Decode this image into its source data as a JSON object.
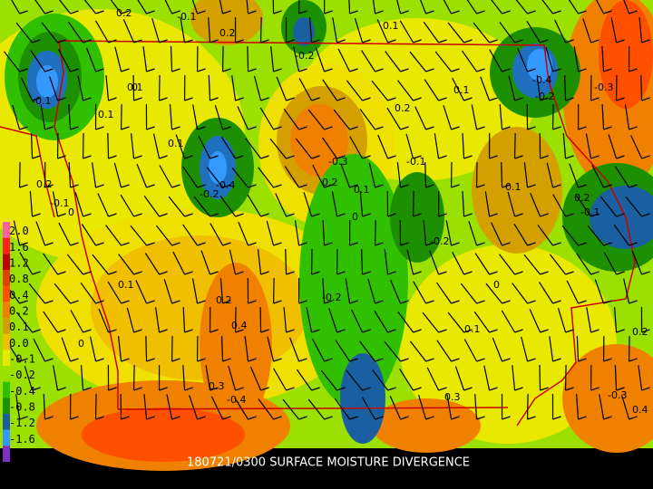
{
  "title": "180721/0300 SURFACE MOISTURE DIVERGENCE",
  "legend": [
    {
      "label": "2.0",
      "color": "#ff60a0"
    },
    {
      "label": "1.6",
      "color": "#ff2020"
    },
    {
      "label": "1.2",
      "color": "#c00000"
    },
    {
      "label": "0.8",
      "color": "#e04000"
    },
    {
      "label": "0.4",
      "color": "#ff5000"
    },
    {
      "label": "0.2",
      "color": "#f08000"
    },
    {
      "label": "0.1",
      "color": "#d4a000"
    },
    {
      "label": "0.0",
      "color": "#f0c000"
    },
    {
      "label": "-0.1",
      "color": "#e8e800"
    },
    {
      "label": "-0.2",
      "color": "#9be000"
    },
    {
      "label": "-0.4",
      "color": "#30c000"
    },
    {
      "label": "-0.8",
      "color": "#1c9000"
    },
    {
      "label": "-1.2",
      "color": "#1a60a0"
    },
    {
      "label": "-1.6",
      "color": "#3399ff"
    },
    {
      "label": "-2.0",
      "color": "#8030c0"
    }
  ],
  "contour_labels": [
    "0.2",
    "-0.1",
    "0.2",
    "-0.2",
    "0.1",
    "0.1",
    "-0.1",
    "0",
    "0.1",
    "0.1",
    "-0.3",
    "0.2",
    "0.1",
    "-0.1",
    "0.2",
    "-0.4",
    "-0.2",
    "-0.4",
    "-0.2",
    "-0.3",
    "0.2",
    "-0.1",
    "0.1",
    "0",
    "0",
    "-0.2",
    "0.1",
    "0.2",
    "-0.2",
    "0.1",
    "0.4",
    "0.2",
    "0",
    "0.1",
    "0.3",
    "-0.4",
    "0",
    "0.3",
    "-0.3",
    "0.4",
    "0.2",
    "-0.1"
  ]
}
